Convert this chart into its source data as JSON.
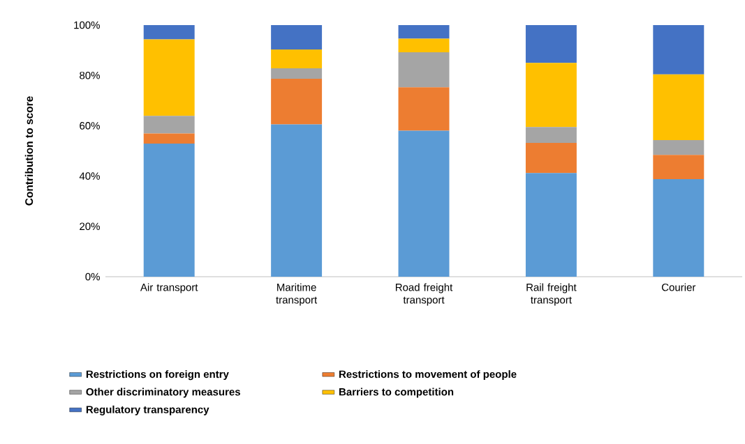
{
  "chart_data": {
    "type": "bar",
    "stacked": true,
    "ylabel": "Contribution to score",
    "categories": [
      "Air transport",
      "Maritime transport",
      "Road freight transport",
      "Rail freight transport",
      "Courier"
    ],
    "series": [
      {
        "name": "Restrictions on foreign entry",
        "color": "#5b9bd5",
        "values": [
          52.9,
          60.5,
          58.0,
          41.2,
          38.8
        ]
      },
      {
        "name": "Restrictions to movement of people",
        "color": "#ed7d31",
        "values": [
          4.0,
          18.2,
          17.3,
          12.0,
          9.6
        ]
      },
      {
        "name": "Other discriminatory measures",
        "color": "#a5a5a5",
        "values": [
          7.0,
          4.1,
          13.9,
          6.3,
          5.9
        ]
      },
      {
        "name": "Barriers to competition",
        "color": "#ffc000",
        "values": [
          30.4,
          7.5,
          5.4,
          25.5,
          26.1
        ]
      },
      {
        "name": "Regulatory transparency",
        "color": "#4472c4",
        "values": [
          5.7,
          9.7,
          5.4,
          15.0,
          19.6
        ]
      }
    ],
    "ylim": [
      0,
      100
    ],
    "yticks": [
      {
        "value": 0,
        "label": "0%"
      },
      {
        "value": 20,
        "label": "20%"
      },
      {
        "value": 40,
        "label": "40%"
      },
      {
        "value": 60,
        "label": "60%"
      },
      {
        "value": 80,
        "label": "80%"
      },
      {
        "value": 100,
        "label": "100%"
      }
    ],
    "grid": false,
    "legend": "bottom"
  }
}
